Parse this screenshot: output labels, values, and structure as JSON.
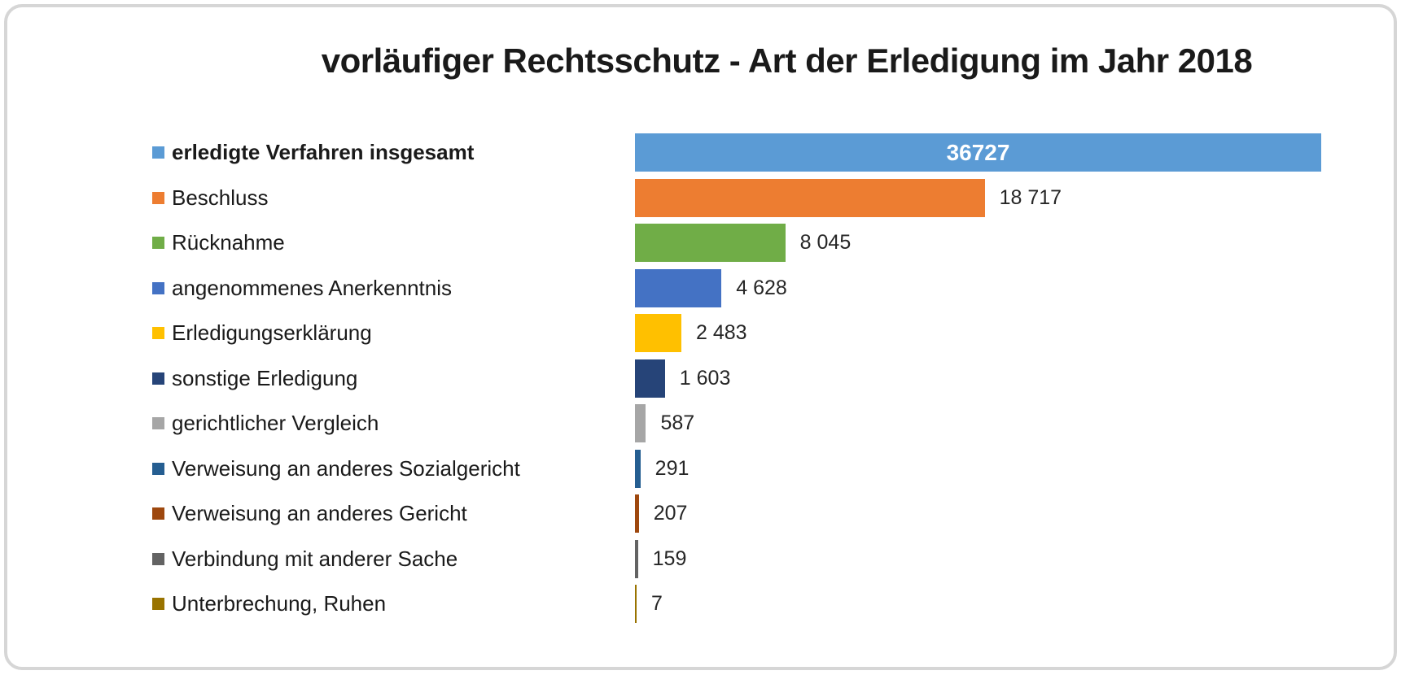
{
  "chart_data": {
    "type": "bar",
    "orientation": "horizontal",
    "title": "vorläufiger Rechtsschutz - Art der Erledigung im Jahr 2018",
    "categories": [
      "erledigte Verfahren insgesamt",
      "Beschluss",
      "Rücknahme",
      "angenommenes Anerkenntnis",
      "Erledigungserklärung",
      "sonstige Erledigung",
      "gerichtlicher Vergleich",
      "Verweisung an anderes Sozialgericht",
      "Verweisung an anderes Gericht",
      "Verbindung mit anderer Sache",
      "Unterbrechung, Ruhen"
    ],
    "values": [
      36727,
      18717,
      8045,
      4628,
      2483,
      1603,
      587,
      291,
      207,
      159,
      7
    ],
    "value_labels": [
      "36727",
      "18 717",
      "8 045",
      "4 628",
      "2 483",
      "1 603",
      "587",
      "291",
      "207",
      "159",
      "7"
    ],
    "colors": [
      "#5B9BD5",
      "#ED7D31",
      "#70AD47",
      "#4472C4",
      "#FFC000",
      "#264478",
      "#A6A6A6",
      "#255E91",
      "#9E480E",
      "#636363",
      "#997300"
    ],
    "dotted": [
      false,
      false,
      false,
      false,
      false,
      false,
      true,
      false,
      false,
      true,
      false
    ],
    "emphasized_index": 0,
    "value_label_position": "outside-right, emphasized bar inside-center",
    "legend_position": "left of bars, one swatch per row",
    "xlim": [
      0,
      36727
    ],
    "grid": false,
    "axes_visible": false
  },
  "styles": {
    "card_border_color": "#d6d6d6",
    "background_color": "#ffffff",
    "text_color": "#1a1a1a",
    "value_text_color": "#262626",
    "inside_value_color": "#ffffff"
  }
}
